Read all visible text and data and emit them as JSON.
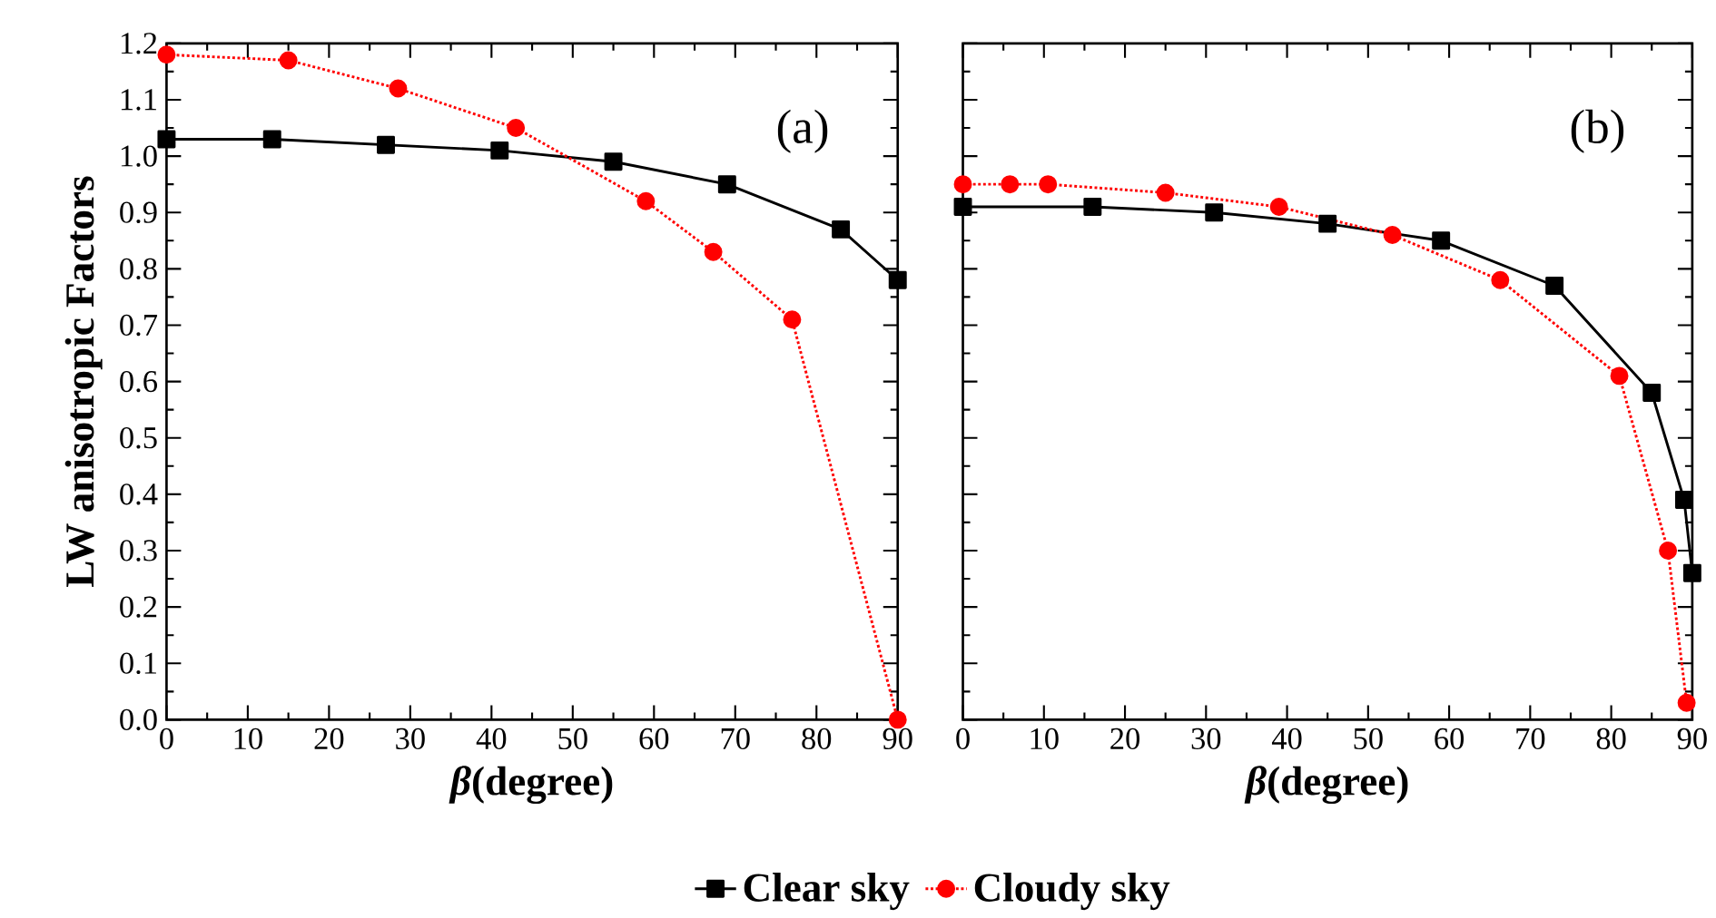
{
  "chart_data": [
    {
      "type": "line",
      "xlabel": "*β*(degree)",
      "ylabel": "LW anisotropic Factors",
      "annotations": [
        "(a)"
      ],
      "xlim": [
        0,
        90
      ],
      "ylim": [
        0,
        1.2
      ],
      "xticks": [
        0,
        10,
        20,
        30,
        40,
        50,
        60,
        70,
        80,
        90
      ],
      "yticks": [
        {
          "value": 0,
          "label": "0.0"
        },
        0.1,
        0.2,
        0.3,
        0.4,
        0.5,
        0.6,
        0.7,
        0.8,
        0.9,
        {
          "value": 1,
          "label": "1.0"
        },
        1.1,
        1.2
      ],
      "grid": false,
      "legend": "bottom",
      "series": [
        {
          "name": "Clear sky",
          "color": "#000000",
          "marker": "square",
          "line_style": "solid",
          "x": [
            0,
            13,
            27,
            41,
            55,
            69,
            83,
            90
          ],
          "values": [
            1.03,
            1.03,
            1.02,
            1.01,
            0.99,
            0.95,
            0.87,
            0.78
          ]
        },
        {
          "name": "Cloudy sky",
          "color": "#ff0000",
          "marker": "circle",
          "line_style": "dotted",
          "x": [
            0,
            15,
            28.5,
            43,
            59,
            67.3,
            77,
            90
          ],
          "values": [
            1.18,
            1.17,
            1.12,
            1.05,
            0.92,
            0.83,
            0.71,
            0.0
          ]
        }
      ]
    },
    {
      "type": "line",
      "xlabel": "*β*(degree)",
      "annotations": [
        "(b)"
      ],
      "xlim": [
        0,
        90
      ],
      "ylim": [
        0,
        1.2
      ],
      "xticks": [
        0,
        10,
        20,
        30,
        40,
        50,
        60,
        70,
        80,
        90
      ],
      "yticks": [
        0,
        0.1,
        0.2,
        0.3,
        0.4,
        0.5,
        0.6,
        0.7,
        0.8,
        0.9,
        1,
        1.1,
        1.2
      ],
      "tick_labels": "x",
      "grid": false,
      "series": [
        {
          "color": "#000000",
          "marker": "square",
          "line_style": "solid",
          "x": [
            0,
            16,
            31,
            45,
            59,
            73,
            85,
            89,
            90
          ],
          "values": [
            0.91,
            0.91,
            0.9,
            0.88,
            0.85,
            0.77,
            0.58,
            0.39,
            0.26
          ]
        },
        {
          "color": "#ff0000",
          "marker": "circle",
          "line_style": "dotted",
          "x": [
            0,
            5.8,
            10.5,
            25,
            39,
            53,
            66.3,
            81,
            87,
            89.3
          ],
          "values": [
            0.95,
            0.95,
            0.95,
            0.935,
            0.91,
            0.86,
            0.78,
            0.61,
            0.3,
            0.03
          ]
        }
      ]
    }
  ]
}
